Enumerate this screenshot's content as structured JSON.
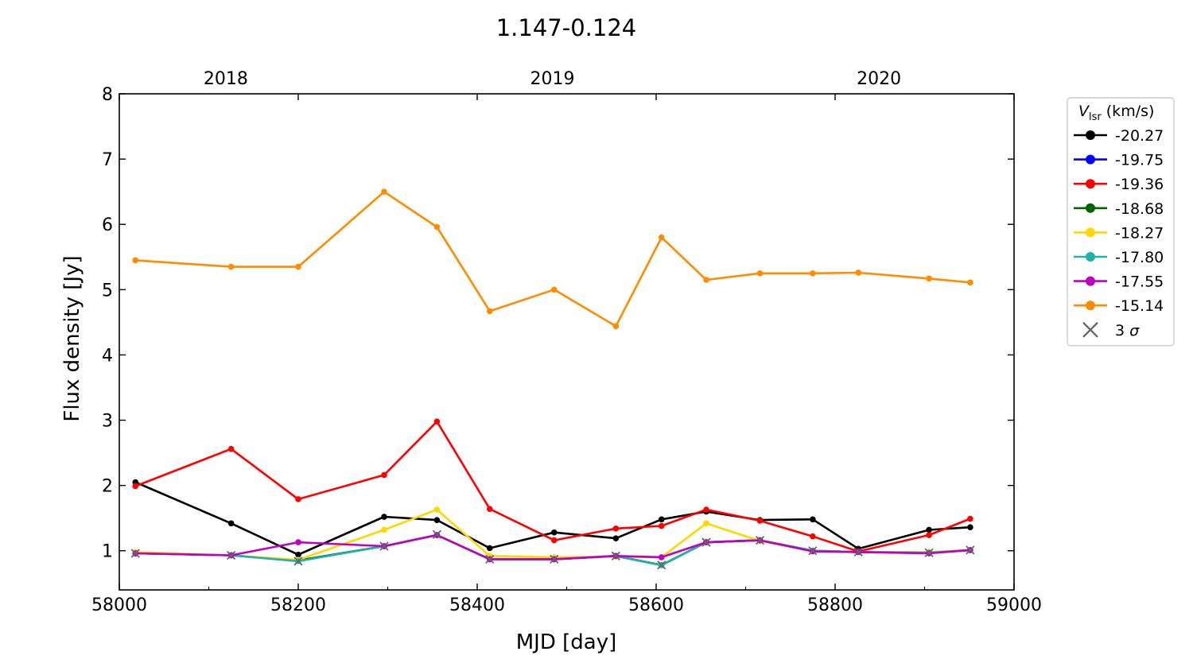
{
  "chart_data": {
    "type": "line",
    "title": "1.147-0.124",
    "xlabel": "MJD [day]",
    "ylabel": "Flux density [Jy]",
    "xlim": [
      58000,
      59000
    ],
    "ylim": [
      0.4,
      8
    ],
    "x_ticks": [
      58000,
      58200,
      58400,
      58600,
      58800,
      59000
    ],
    "y_ticks": [
      1,
      2,
      3,
      4,
      5,
      6,
      7,
      8
    ],
    "top_axis_ticks": [
      {
        "label": "2018",
        "mjd": 58119
      },
      {
        "label": "2019",
        "mjd": 58484
      },
      {
        "label": "2020",
        "mjd": 58849
      }
    ],
    "legend": {
      "title_main": "V",
      "title_sub": "lsr",
      "title_unit": " (km/s)",
      "location": "outside right",
      "sigma_label_num": "3",
      "sigma_label_sym": "σ"
    },
    "x": [
      58018,
      58125,
      58200,
      58296,
      58355,
      58414,
      58486,
      58555,
      58606,
      58656,
      58716,
      58775,
      58826,
      58905,
      58951
    ],
    "series": [
      {
        "name": "-20.27",
        "color": "#000000",
        "values": [
          2.05,
          1.42,
          0.94,
          1.52,
          1.47,
          1.04,
          1.28,
          1.19,
          1.48,
          1.6,
          1.47,
          1.48,
          1.03,
          1.32,
          1.36
        ]
      },
      {
        "name": "-19.75",
        "color": "#0000ff",
        "values": [
          0.96,
          0.93,
          0.85,
          1.07,
          1.24,
          0.87,
          0.87,
          0.92,
          0.78,
          1.13,
          1.16,
          1.0,
          0.98,
          0.97,
          1.01
        ]
      },
      {
        "name": "-19.36",
        "color": "#ff0000",
        "values": [
          1.99,
          2.56,
          1.79,
          2.16,
          2.98,
          1.64,
          1.16,
          1.34,
          1.38,
          1.63,
          1.46,
          1.22,
          0.99,
          1.24,
          1.49
        ]
      },
      {
        "name": "-18.68",
        "color": "#006400",
        "values": [
          0.96,
          0.93,
          0.85,
          1.07,
          1.24,
          0.87,
          0.87,
          0.92,
          0.78,
          1.13,
          1.16,
          1.0,
          0.98,
          0.97,
          1.01
        ]
      },
      {
        "name": "-18.27",
        "color": "#ffd700",
        "values": [
          0.98,
          0.93,
          0.86,
          1.32,
          1.63,
          0.92,
          0.9,
          0.91,
          0.9,
          1.42,
          1.15,
          1.0,
          0.98,
          0.98,
          1.01
        ]
      },
      {
        "name": "-17.80",
        "color": "#20b2aa",
        "values": [
          0.96,
          0.93,
          0.84,
          1.07,
          1.24,
          0.87,
          0.87,
          0.92,
          0.78,
          1.13,
          1.16,
          1.0,
          0.98,
          0.97,
          1.01
        ]
      },
      {
        "name": "-17.55",
        "color": "#bf00bf",
        "values": [
          0.96,
          0.93,
          1.13,
          1.07,
          1.24,
          0.87,
          0.87,
          0.92,
          0.9,
          1.13,
          1.16,
          0.99,
          0.98,
          0.96,
          1.01
        ]
      },
      {
        "name": "-15.14",
        "color": "#ff8c00",
        "values": [
          5.45,
          5.35,
          5.35,
          6.5,
          5.96,
          4.67,
          5.0,
          4.44,
          5.8,
          5.15,
          5.25,
          5.25,
          5.26,
          5.17,
          5.11
        ]
      }
    ],
    "sigma_markers": [
      {
        "x": 58018,
        "y": 0.96
      },
      {
        "x": 58125,
        "y": 0.93
      },
      {
        "x": 58200,
        "y": 0.84
      },
      {
        "x": 58296,
        "y": 1.07
      },
      {
        "x": 58355,
        "y": 1.25
      },
      {
        "x": 58414,
        "y": 0.87
      },
      {
        "x": 58486,
        "y": 0.87
      },
      {
        "x": 58555,
        "y": 0.92
      },
      {
        "x": 58606,
        "y": 0.78
      },
      {
        "x": 58656,
        "y": 1.13
      },
      {
        "x": 58716,
        "y": 1.16
      },
      {
        "x": 58775,
        "y": 1.0
      },
      {
        "x": 58826,
        "y": 0.98
      },
      {
        "x": 58905,
        "y": 0.97
      },
      {
        "x": 58951,
        "y": 1.01
      }
    ],
    "sigma_color": "#666666",
    "grid": false
  }
}
